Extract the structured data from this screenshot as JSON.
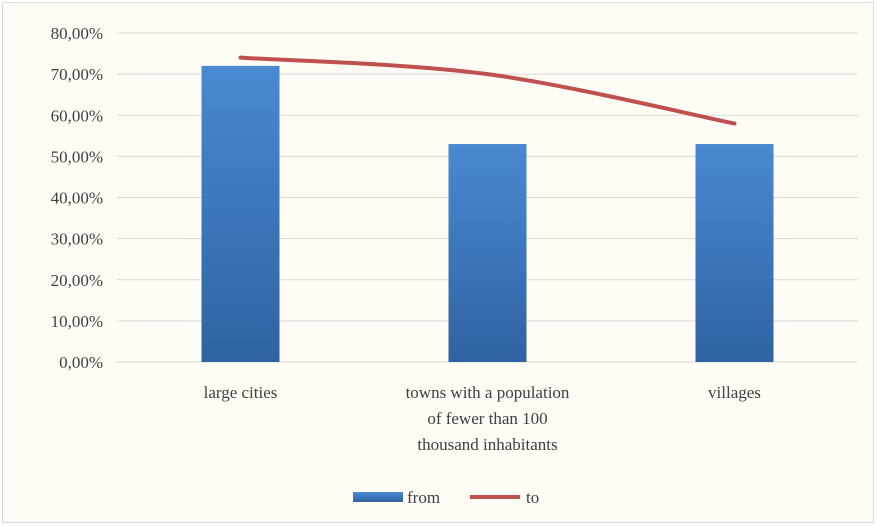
{
  "chart_data": {
    "type": "bar",
    "categories": [
      [
        "large cities"
      ],
      [
        "towns with a population",
        "of fewer than 100",
        "thousand inhabitants"
      ],
      [
        "villages"
      ]
    ],
    "series": [
      {
        "name": "from",
        "kind": "bar",
        "values": [
          72,
          53,
          53
        ],
        "color": "#4a86cc"
      },
      {
        "name": "to",
        "kind": "line",
        "values": [
          74,
          70,
          58
        ],
        "color": "#c0504d"
      }
    ],
    "ylim": [
      0,
      80
    ],
    "yticks": [
      0,
      10,
      20,
      30,
      40,
      50,
      60,
      70,
      80
    ],
    "ytick_labels": [
      "0,00%",
      "10,00%",
      "20,00%",
      "30,00%",
      "40,00%",
      "50,00%",
      "60,00%",
      "70,00%",
      "80,00%"
    ],
    "grid": true,
    "legend_position": "bottom"
  }
}
